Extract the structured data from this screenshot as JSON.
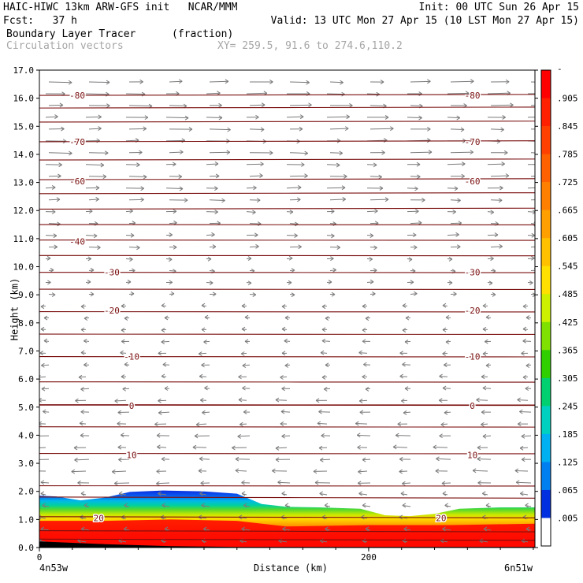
{
  "header": {
    "line1_left": "HAIC-HIWC 13km ARW-GFS init   NCAR/MMM",
    "line1_right": "Init: 00 UTC Sun 26 Apr 15",
    "line2_left": "Fcst:   37 h",
    "line2_right": "Valid: 13 UTC Mon 27 Apr 15 (10 LST Mon 27 Apr 15)",
    "line3_field": "Boundary Layer Tracer",
    "line3_units": "(fraction)",
    "line4_field": "Circulation vectors",
    "line4_xy": "XY= 259.5, 91.6 to 274.6,110.2"
  },
  "chart_data": {
    "type": "cross-section",
    "ylabel": "Height (km)",
    "xlabel": "Distance (km)",
    "x_start_label": "4n53w",
    "x_end_label": "6n51w",
    "ylim": [
      0,
      17
    ],
    "xlim": [
      0,
      301
    ],
    "yticks": [
      "0.0",
      "1.0",
      "2.0",
      "3.0",
      "4.0",
      "5.0",
      "6.0",
      "7.0",
      "8.0",
      "9.0",
      "10.0",
      "11.0",
      "12.0",
      "13.0",
      "14.0",
      "15.0",
      "16.0",
      "17.0"
    ],
    "xticks": [
      {
        "value": 0,
        "label": "0"
      },
      {
        "value": 200,
        "label": "200"
      }
    ],
    "colorbar": {
      "labels": [
        "-",
        ".905",
        ".845",
        ".785",
        ".725",
        ".665",
        ".605",
        ".545",
        ".485",
        ".425",
        ".365",
        ".305",
        ".245",
        ".185",
        ".125",
        ".065",
        ".005"
      ],
      "colors": [
        "#ff0000",
        "#ff2000",
        "#ff4000",
        "#ff6000",
        "#ff8000",
        "#ffa000",
        "#ffc000",
        "#ffe000",
        "#ccf000",
        "#80e000",
        "#30d000",
        "#00d070",
        "#00d0c0",
        "#00b0f0",
        "#0080f0",
        "#0030e0",
        "#ffffff"
      ]
    },
    "isotherm_labels": [
      {
        "label": "-80",
        "y": 16.1,
        "x_left": 23,
        "x_right": 263
      },
      {
        "label": "-70",
        "y": 14.45,
        "x_left": 23,
        "x_right": 263
      },
      {
        "label": "-60",
        "y": 13.05,
        "x_left": 23,
        "x_right": 263
      },
      {
        "label": "-40",
        "y": 10.9,
        "x_left": 23,
        "x_right": null
      },
      {
        "label": "-30",
        "y": 9.8,
        "x_left": 44,
        "x_right": 263
      },
      {
        "label": "-20",
        "y": 8.45,
        "x_left": 44,
        "x_right": 263
      },
      {
        "label": "-10",
        "y": 6.8,
        "x_left": 56,
        "x_right": 263
      },
      {
        "label": "0",
        "y": 5.05,
        "x_left": 56,
        "x_right": 263
      },
      {
        "label": "10",
        "y": 3.3,
        "x_left": 56,
        "x_right": 263
      },
      {
        "label": "20",
        "y": 1.05,
        "x_left": 36,
        "x_right": 244
      }
    ],
    "isotherm_levels": [
      0.3,
      0.6,
      1.1,
      1.8,
      2.2,
      3.35,
      4.3,
      5.08,
      5.9,
      6.8,
      7.6,
      8.4,
      9.2,
      9.8,
      10.4,
      10.95,
      11.5,
      12.05,
      12.6,
      13.1,
      13.8,
      14.45,
      15.15,
      15.65,
      16.1
    ]
  }
}
